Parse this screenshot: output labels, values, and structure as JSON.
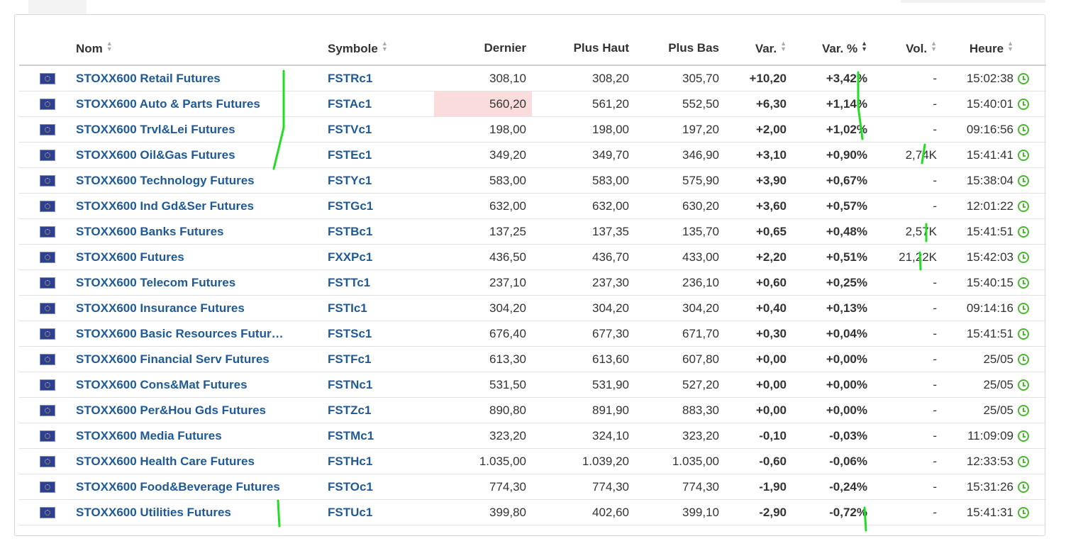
{
  "columns": {
    "nom": "Nom",
    "symbole": "Symbole",
    "dernier": "Dernier",
    "plus_haut": "Plus Haut",
    "plus_bas": "Plus Bas",
    "var": "Var.",
    "var_pct": "Var. %",
    "vol": "Vol.",
    "heure": "Heure"
  },
  "colors": {
    "link": "#1f5a96",
    "positive": "#2aa815",
    "negative": "#e21414",
    "highlight": "#fadcdc",
    "annotation": "#22dd22"
  },
  "icons": {
    "flag": "eu-flag-icon",
    "clock": "clock-icon",
    "sort": "sort-icon"
  },
  "rows": [
    {
      "name": "STOXX600 Retail Futures",
      "symbol": "FSTRc1",
      "last": "308,10",
      "high": "308,20",
      "low": "305,70",
      "chg": "+10,20",
      "chg_pct": "+3,42%",
      "vol": "-",
      "time": "15:02:38",
      "dir": "pos",
      "highlight": false
    },
    {
      "name": "STOXX600 Auto & Parts Futures",
      "symbol": "FSTAc1",
      "last": "560,20",
      "high": "561,20",
      "low": "552,50",
      "chg": "+6,30",
      "chg_pct": "+1,14%",
      "vol": "-",
      "time": "15:40:01",
      "dir": "pos",
      "highlight": true
    },
    {
      "name": "STOXX600 Trvl&Lei Futures",
      "symbol": "FSTVc1",
      "last": "198,00",
      "high": "198,00",
      "low": "197,20",
      "chg": "+2,00",
      "chg_pct": "+1,02%",
      "vol": "-",
      "time": "09:16:56",
      "dir": "pos",
      "highlight": false
    },
    {
      "name": "STOXX600 Oil&Gas Futures",
      "symbol": "FSTEc1",
      "last": "349,20",
      "high": "349,70",
      "low": "346,90",
      "chg": "+3,10",
      "chg_pct": "+0,90%",
      "vol": "2,74K",
      "time": "15:41:41",
      "dir": "pos",
      "highlight": false
    },
    {
      "name": "STOXX600 Technology Futures",
      "symbol": "FSTYc1",
      "last": "583,00",
      "high": "583,00",
      "low": "575,90",
      "chg": "+3,90",
      "chg_pct": "+0,67%",
      "vol": "-",
      "time": "15:38:04",
      "dir": "pos",
      "highlight": false
    },
    {
      "name": "STOXX600 Ind Gd&Ser Futures",
      "symbol": "FSTGc1",
      "last": "632,00",
      "high": "632,00",
      "low": "630,20",
      "chg": "+3,60",
      "chg_pct": "+0,57%",
      "vol": "-",
      "time": "12:01:22",
      "dir": "pos",
      "highlight": false
    },
    {
      "name": "STOXX600 Banks Futures",
      "symbol": "FSTBc1",
      "last": "137,25",
      "high": "137,35",
      "low": "135,70",
      "chg": "+0,65",
      "chg_pct": "+0,48%",
      "vol": "2,57K",
      "time": "15:41:51",
      "dir": "pos",
      "highlight": false
    },
    {
      "name": "STOXX600 Futures",
      "symbol": "FXXPc1",
      "last": "436,50",
      "high": "436,70",
      "low": "433,00",
      "chg": "+2,20",
      "chg_pct": "+0,51%",
      "vol": "21,22K",
      "time": "15:42:03",
      "dir": "pos",
      "highlight": false
    },
    {
      "name": "STOXX600 Telecom Futures",
      "symbol": "FSTTc1",
      "last": "237,10",
      "high": "237,30",
      "low": "236,10",
      "chg": "+0,60",
      "chg_pct": "+0,25%",
      "vol": "-",
      "time": "15:40:15",
      "dir": "pos",
      "highlight": false
    },
    {
      "name": "STOXX600 Insurance Futures",
      "symbol": "FSTIc1",
      "last": "304,20",
      "high": "304,20",
      "low": "304,20",
      "chg": "+0,40",
      "chg_pct": "+0,13%",
      "vol": "-",
      "time": "09:14:16",
      "dir": "pos",
      "highlight": false
    },
    {
      "name": "STOXX600 Basic Resources Futur…",
      "symbol": "FSTSc1",
      "last": "676,40",
      "high": "677,30",
      "low": "671,70",
      "chg": "+0,30",
      "chg_pct": "+0,04%",
      "vol": "-",
      "time": "15:41:51",
      "dir": "pos",
      "highlight": false
    },
    {
      "name": "STOXX600 Financial Serv Futures",
      "symbol": "FSTFc1",
      "last": "613,30",
      "high": "613,60",
      "low": "607,80",
      "chg": "+0,00",
      "chg_pct": "+0,00%",
      "vol": "-",
      "time": "25/05",
      "dir": "pos",
      "highlight": false
    },
    {
      "name": "STOXX600 Cons&Mat Futures",
      "symbol": "FSTNc1",
      "last": "531,50",
      "high": "531,90",
      "low": "527,20",
      "chg": "+0,00",
      "chg_pct": "+0,00%",
      "vol": "-",
      "time": "25/05",
      "dir": "pos",
      "highlight": false
    },
    {
      "name": "STOXX600 Per&Hou Gds Futures",
      "symbol": "FSTZc1",
      "last": "890,80",
      "high": "891,90",
      "low": "883,30",
      "chg": "+0,00",
      "chg_pct": "+0,00%",
      "vol": "-",
      "time": "25/05",
      "dir": "pos",
      "highlight": false
    },
    {
      "name": "STOXX600 Media Futures",
      "symbol": "FSTMc1",
      "last": "323,20",
      "high": "324,10",
      "low": "323,20",
      "chg": "-0,10",
      "chg_pct": "-0,03%",
      "vol": "-",
      "time": "11:09:09",
      "dir": "neg",
      "highlight": false
    },
    {
      "name": "STOXX600 Health Care Futures",
      "symbol": "FSTHc1",
      "last": "1.035,00",
      "high": "1.039,20",
      "low": "1.035,00",
      "chg": "-0,60",
      "chg_pct": "-0,06%",
      "vol": "-",
      "time": "12:33:53",
      "dir": "neg",
      "highlight": false
    },
    {
      "name": "STOXX600 Food&Beverage Futures",
      "symbol": "FSTOc1",
      "last": "774,30",
      "high": "774,30",
      "low": "774,30",
      "chg": "-1,90",
      "chg_pct": "-0,24%",
      "vol": "-",
      "time": "15:31:26",
      "dir": "neg",
      "highlight": false
    },
    {
      "name": "STOXX600 Utilities Futures",
      "symbol": "FSTUc1",
      "last": "399,80",
      "high": "402,60",
      "low": "399,10",
      "chg": "-2,90",
      "chg_pct": "-0,72%",
      "vol": "-",
      "time": "15:41:31",
      "dir": "neg",
      "highlight": false
    }
  ]
}
